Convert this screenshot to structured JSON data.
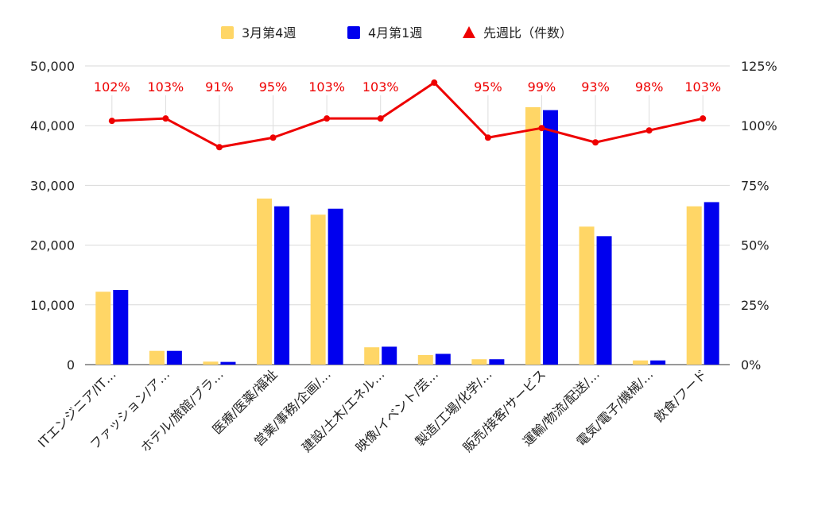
{
  "chart_data": {
    "type": "bar",
    "title": "",
    "xlabel": "",
    "ylabel": "",
    "ylim": [
      0,
      50000
    ],
    "y2lim": [
      0,
      1.25
    ],
    "y_ticks": [
      "0",
      "10,000",
      "20,000",
      "30,000",
      "40,000",
      "50,000"
    ],
    "y_tick_values": [
      0,
      10000,
      20000,
      30000,
      40000,
      50000
    ],
    "y2_ticks": [
      "0%",
      "25%",
      "50%",
      "75%",
      "100%",
      "125%"
    ],
    "y2_tick_values": [
      0,
      0.25,
      0.5,
      0.75,
      1.0,
      1.25
    ],
    "grid": true,
    "legend_position": "top",
    "categories": [
      "ITエンジニア/IT…",
      "ファッション/ア…",
      "ホテル/旅館/ブラ…",
      "医療/医薬/福祉",
      "営業/事務/企画/…",
      "建設/土木/エネル…",
      "映像/イベント/芸…",
      "製造/工場/化学/…",
      "販売/接客/サービス",
      "運輸/物流/配送/…",
      "電気/電子/機械/…",
      "飲食/フード"
    ],
    "series": [
      {
        "name": "3月第4週",
        "kind": "bar",
        "axis": "left",
        "color": "#ffd666",
        "values": [
          12200,
          2300,
          500,
          27800,
          25100,
          2900,
          1600,
          900,
          43100,
          23100,
          700,
          26500
        ]
      },
      {
        "name": "4月第1週",
        "kind": "bar",
        "axis": "left",
        "color": "#0000ee",
        "values": [
          12500,
          2300,
          450,
          26500,
          26100,
          3000,
          1800,
          900,
          42600,
          21500,
          700,
          27200
        ]
      },
      {
        "name": "先週比（件数）",
        "kind": "line",
        "axis": "right",
        "color": "#ee0000",
        "values": [
          1.02,
          1.03,
          0.91,
          0.95,
          1.03,
          1.03,
          1.18,
          0.95,
          0.99,
          0.93,
          0.98,
          1.03
        ],
        "labels": [
          "102%",
          "103%",
          "91%",
          "95%",
          "103%",
          "103%",
          "",
          "95%",
          "99%",
          "93%",
          "98%",
          "103%"
        ]
      }
    ]
  }
}
